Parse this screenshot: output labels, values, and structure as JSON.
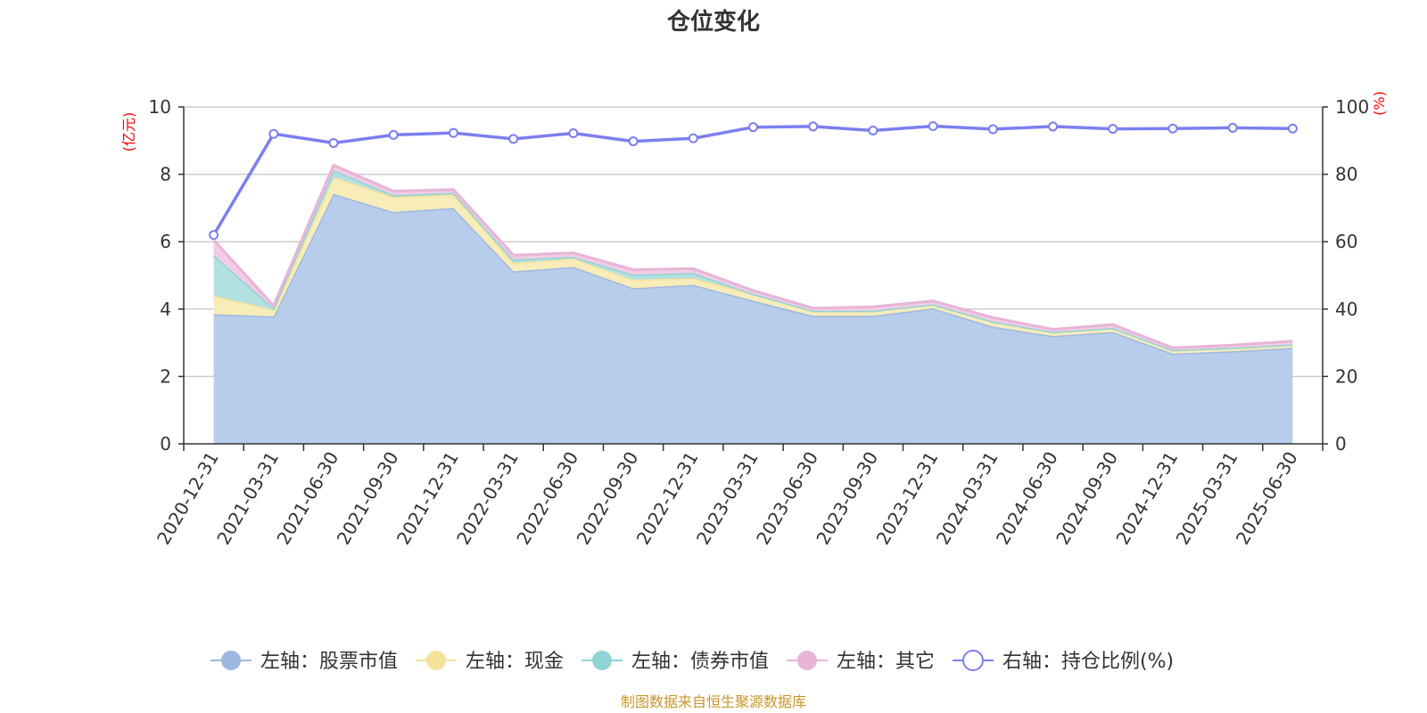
{
  "chart_data": {
    "type": "area",
    "title": "仓位变化",
    "x": [
      "2020-12-31",
      "2021-03-31",
      "2021-06-30",
      "2021-09-30",
      "2021-12-31",
      "2022-03-31",
      "2022-06-30",
      "2022-09-30",
      "2022-12-31",
      "2023-03-31",
      "2023-06-30",
      "2023-09-30",
      "2023-12-31",
      "2024-03-31",
      "2024-06-30",
      "2024-09-30",
      "2024-12-31",
      "2025-03-31",
      "2025-06-30"
    ],
    "y_left": {
      "unit": "(亿元)",
      "ylim": [
        0,
        10
      ],
      "ticks": [
        0,
        2,
        4,
        6,
        8,
        10
      ]
    },
    "y_right": {
      "unit": "(%)",
      "ylim": [
        0,
        100
      ],
      "ticks": [
        0,
        20,
        40,
        60,
        80,
        100
      ]
    },
    "stacked": true,
    "series": [
      {
        "name": "左轴：股票市值",
        "axis": "left",
        "kind": "area",
        "color": "#9db8e0",
        "fill": "#b8cdeb",
        "values": [
          3.85,
          3.78,
          7.42,
          6.88,
          7.0,
          5.12,
          5.25,
          4.62,
          4.72,
          4.25,
          3.8,
          3.8,
          4.02,
          3.48,
          3.2,
          3.32,
          2.68,
          2.75,
          2.85
        ]
      },
      {
        "name": "左轴：现金",
        "axis": "left",
        "kind": "area",
        "color": "#f5e29a",
        "fill": "#f8ecb9",
        "values": [
          0.55,
          0.2,
          0.5,
          0.45,
          0.4,
          0.25,
          0.25,
          0.25,
          0.2,
          0.2,
          0.15,
          0.15,
          0.12,
          0.15,
          0.12,
          0.12,
          0.1,
          0.1,
          0.1
        ]
      },
      {
        "name": "左轴：债券市值",
        "axis": "left",
        "kind": "area",
        "color": "#8fd4d4",
        "fill": "#b3e1e1",
        "values": [
          1.2,
          0.05,
          0.2,
          0.05,
          0.05,
          0.1,
          0.05,
          0.15,
          0.15,
          0.0,
          0.0,
          0.0,
          0.0,
          0.0,
          0.0,
          0.0,
          0.0,
          0.0,
          0.0
        ]
      },
      {
        "name": "左轴：其它",
        "axis": "left",
        "kind": "area",
        "color": "#e8b4d8",
        "fill": "#f0cde4",
        "values": [
          0.45,
          0.07,
          0.15,
          0.12,
          0.1,
          0.13,
          0.12,
          0.15,
          0.13,
          0.1,
          0.08,
          0.12,
          0.1,
          0.12,
          0.08,
          0.1,
          0.07,
          0.08,
          0.1
        ]
      },
      {
        "name": "右轴：持仓比例(%)",
        "axis": "right",
        "kind": "line",
        "color": "#7b7ff0",
        "values": [
          62,
          92,
          89.3,
          91.7,
          92.3,
          90.5,
          92.2,
          89.8,
          90.7,
          94,
          94.2,
          93,
          94.3,
          93.4,
          94.2,
          93.5,
          93.6,
          93.8,
          93.6
        ]
      }
    ],
    "grid": true,
    "legend_position": "bottom"
  },
  "source_note": "制图数据来自恒生聚源数据库"
}
